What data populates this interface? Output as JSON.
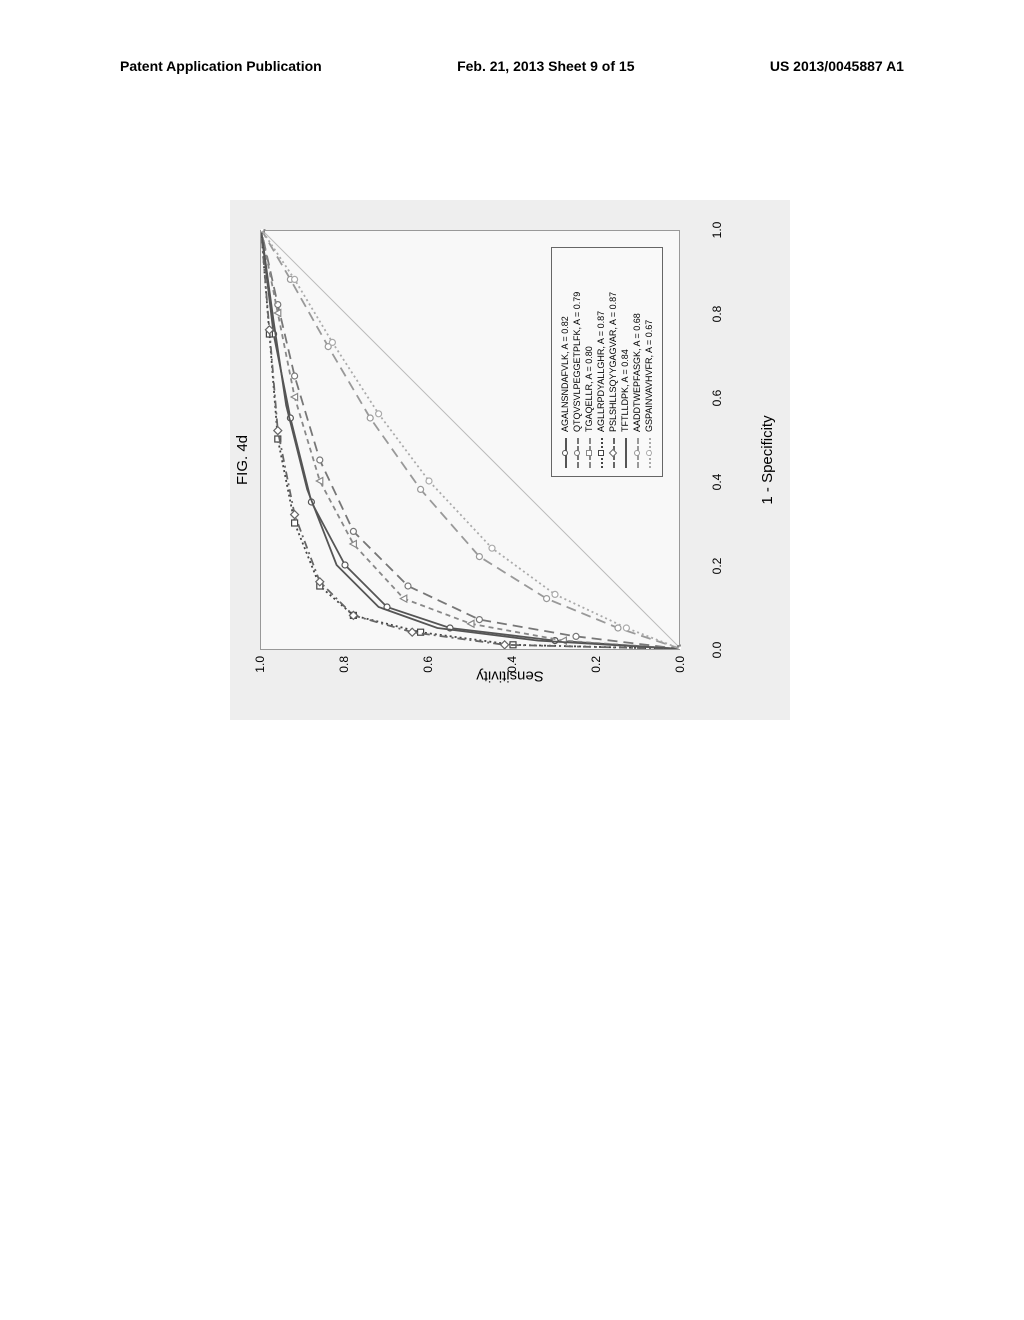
{
  "header": {
    "left": "Patent Application Publication",
    "center": "Feb. 21, 2013  Sheet 9 of 15",
    "right": "US 2013/0045887 A1"
  },
  "figure": {
    "label": "FIG. 4d",
    "type": "roc-line",
    "x_label": "1 - Specificity",
    "y_label": "Sensitivity",
    "xlim": [
      0.0,
      1.0
    ],
    "ylim": [
      0.0,
      1.0
    ],
    "x_ticks": [
      0.0,
      0.2,
      0.4,
      0.6,
      0.8,
      1.0
    ],
    "y_ticks": [
      0.0,
      0.2,
      0.4,
      0.6,
      0.8,
      1.0
    ],
    "background_color": "#eeeeee",
    "plot_bg": "#f8f8f8",
    "axis_color": "#666666",
    "series": [
      {
        "label": "AGALNSNDAFVLK, A = 0.82",
        "color": "#555555",
        "dash": "solid",
        "marker": "circle",
        "points": [
          [
            0,
            0
          ],
          [
            0.02,
            0.3
          ],
          [
            0.05,
            0.55
          ],
          [
            0.1,
            0.7
          ],
          [
            0.2,
            0.8
          ],
          [
            0.35,
            0.88
          ],
          [
            0.55,
            0.93
          ],
          [
            0.75,
            0.97
          ],
          [
            1.0,
            1.0
          ]
        ]
      },
      {
        "label": "QTQVSVLPEGGETPLFK, A = 0.79",
        "color": "#777777",
        "dash": "long-dash",
        "marker": "circle",
        "points": [
          [
            0,
            0
          ],
          [
            0.03,
            0.25
          ],
          [
            0.07,
            0.48
          ],
          [
            0.15,
            0.65
          ],
          [
            0.28,
            0.78
          ],
          [
            0.45,
            0.86
          ],
          [
            0.65,
            0.92
          ],
          [
            0.82,
            0.96
          ],
          [
            1.0,
            1.0
          ]
        ]
      },
      {
        "label": "TGAQELLR, A = 0.80",
        "color": "#888888",
        "dash": "short-dash",
        "marker": "triangle",
        "points": [
          [
            0,
            0
          ],
          [
            0.02,
            0.28
          ],
          [
            0.06,
            0.5
          ],
          [
            0.12,
            0.66
          ],
          [
            0.25,
            0.78
          ],
          [
            0.4,
            0.86
          ],
          [
            0.6,
            0.92
          ],
          [
            0.8,
            0.96
          ],
          [
            1.0,
            1.0
          ]
        ]
      },
      {
        "label": "AGLLRPDYALLGHR, A = 0.87",
        "color": "#444444",
        "dash": "dotted",
        "marker": "square",
        "points": [
          [
            0,
            0
          ],
          [
            0.01,
            0.4
          ],
          [
            0.04,
            0.62
          ],
          [
            0.08,
            0.78
          ],
          [
            0.15,
            0.86
          ],
          [
            0.3,
            0.92
          ],
          [
            0.5,
            0.96
          ],
          [
            0.75,
            0.98
          ],
          [
            1.0,
            1.0
          ]
        ]
      },
      {
        "label": "PSLSHLLSQYYGAGVAR, A = 0.87",
        "color": "#666666",
        "dash": "dash-dot",
        "marker": "diamond",
        "points": [
          [
            0,
            0
          ],
          [
            0.01,
            0.42
          ],
          [
            0.04,
            0.64
          ],
          [
            0.08,
            0.78
          ],
          [
            0.16,
            0.86
          ],
          [
            0.32,
            0.92
          ],
          [
            0.52,
            0.96
          ],
          [
            0.76,
            0.98
          ],
          [
            1.0,
            1.0
          ]
        ]
      },
      {
        "label": "TFTLLDPK, A = 0.84",
        "color": "#555555",
        "dash": "solid",
        "marker": "none",
        "points": [
          [
            0,
            0
          ],
          [
            0.02,
            0.34
          ],
          [
            0.05,
            0.58
          ],
          [
            0.1,
            0.72
          ],
          [
            0.2,
            0.82
          ],
          [
            0.38,
            0.89
          ],
          [
            0.58,
            0.94
          ],
          [
            0.78,
            0.97
          ],
          [
            1.0,
            1.0
          ]
        ]
      },
      {
        "label": "AADDTWEPFASGK, A = 0.68",
        "color": "#999999",
        "dash": "long-dash",
        "marker": "circle",
        "points": [
          [
            0,
            0
          ],
          [
            0.05,
            0.15
          ],
          [
            0.12,
            0.32
          ],
          [
            0.22,
            0.48
          ],
          [
            0.38,
            0.62
          ],
          [
            0.55,
            0.74
          ],
          [
            0.72,
            0.84
          ],
          [
            0.88,
            0.93
          ],
          [
            1.0,
            1.0
          ]
        ]
      },
      {
        "label": "GSPAINVAVHVFR, A = 0.67",
        "color": "#aaaaaa",
        "dash": "dotted",
        "marker": "circle",
        "points": [
          [
            0,
            0
          ],
          [
            0.05,
            0.13
          ],
          [
            0.13,
            0.3
          ],
          [
            0.24,
            0.45
          ],
          [
            0.4,
            0.6
          ],
          [
            0.56,
            0.72
          ],
          [
            0.73,
            0.83
          ],
          [
            0.88,
            0.92
          ],
          [
            1.0,
            1.0
          ]
        ]
      }
    ]
  }
}
